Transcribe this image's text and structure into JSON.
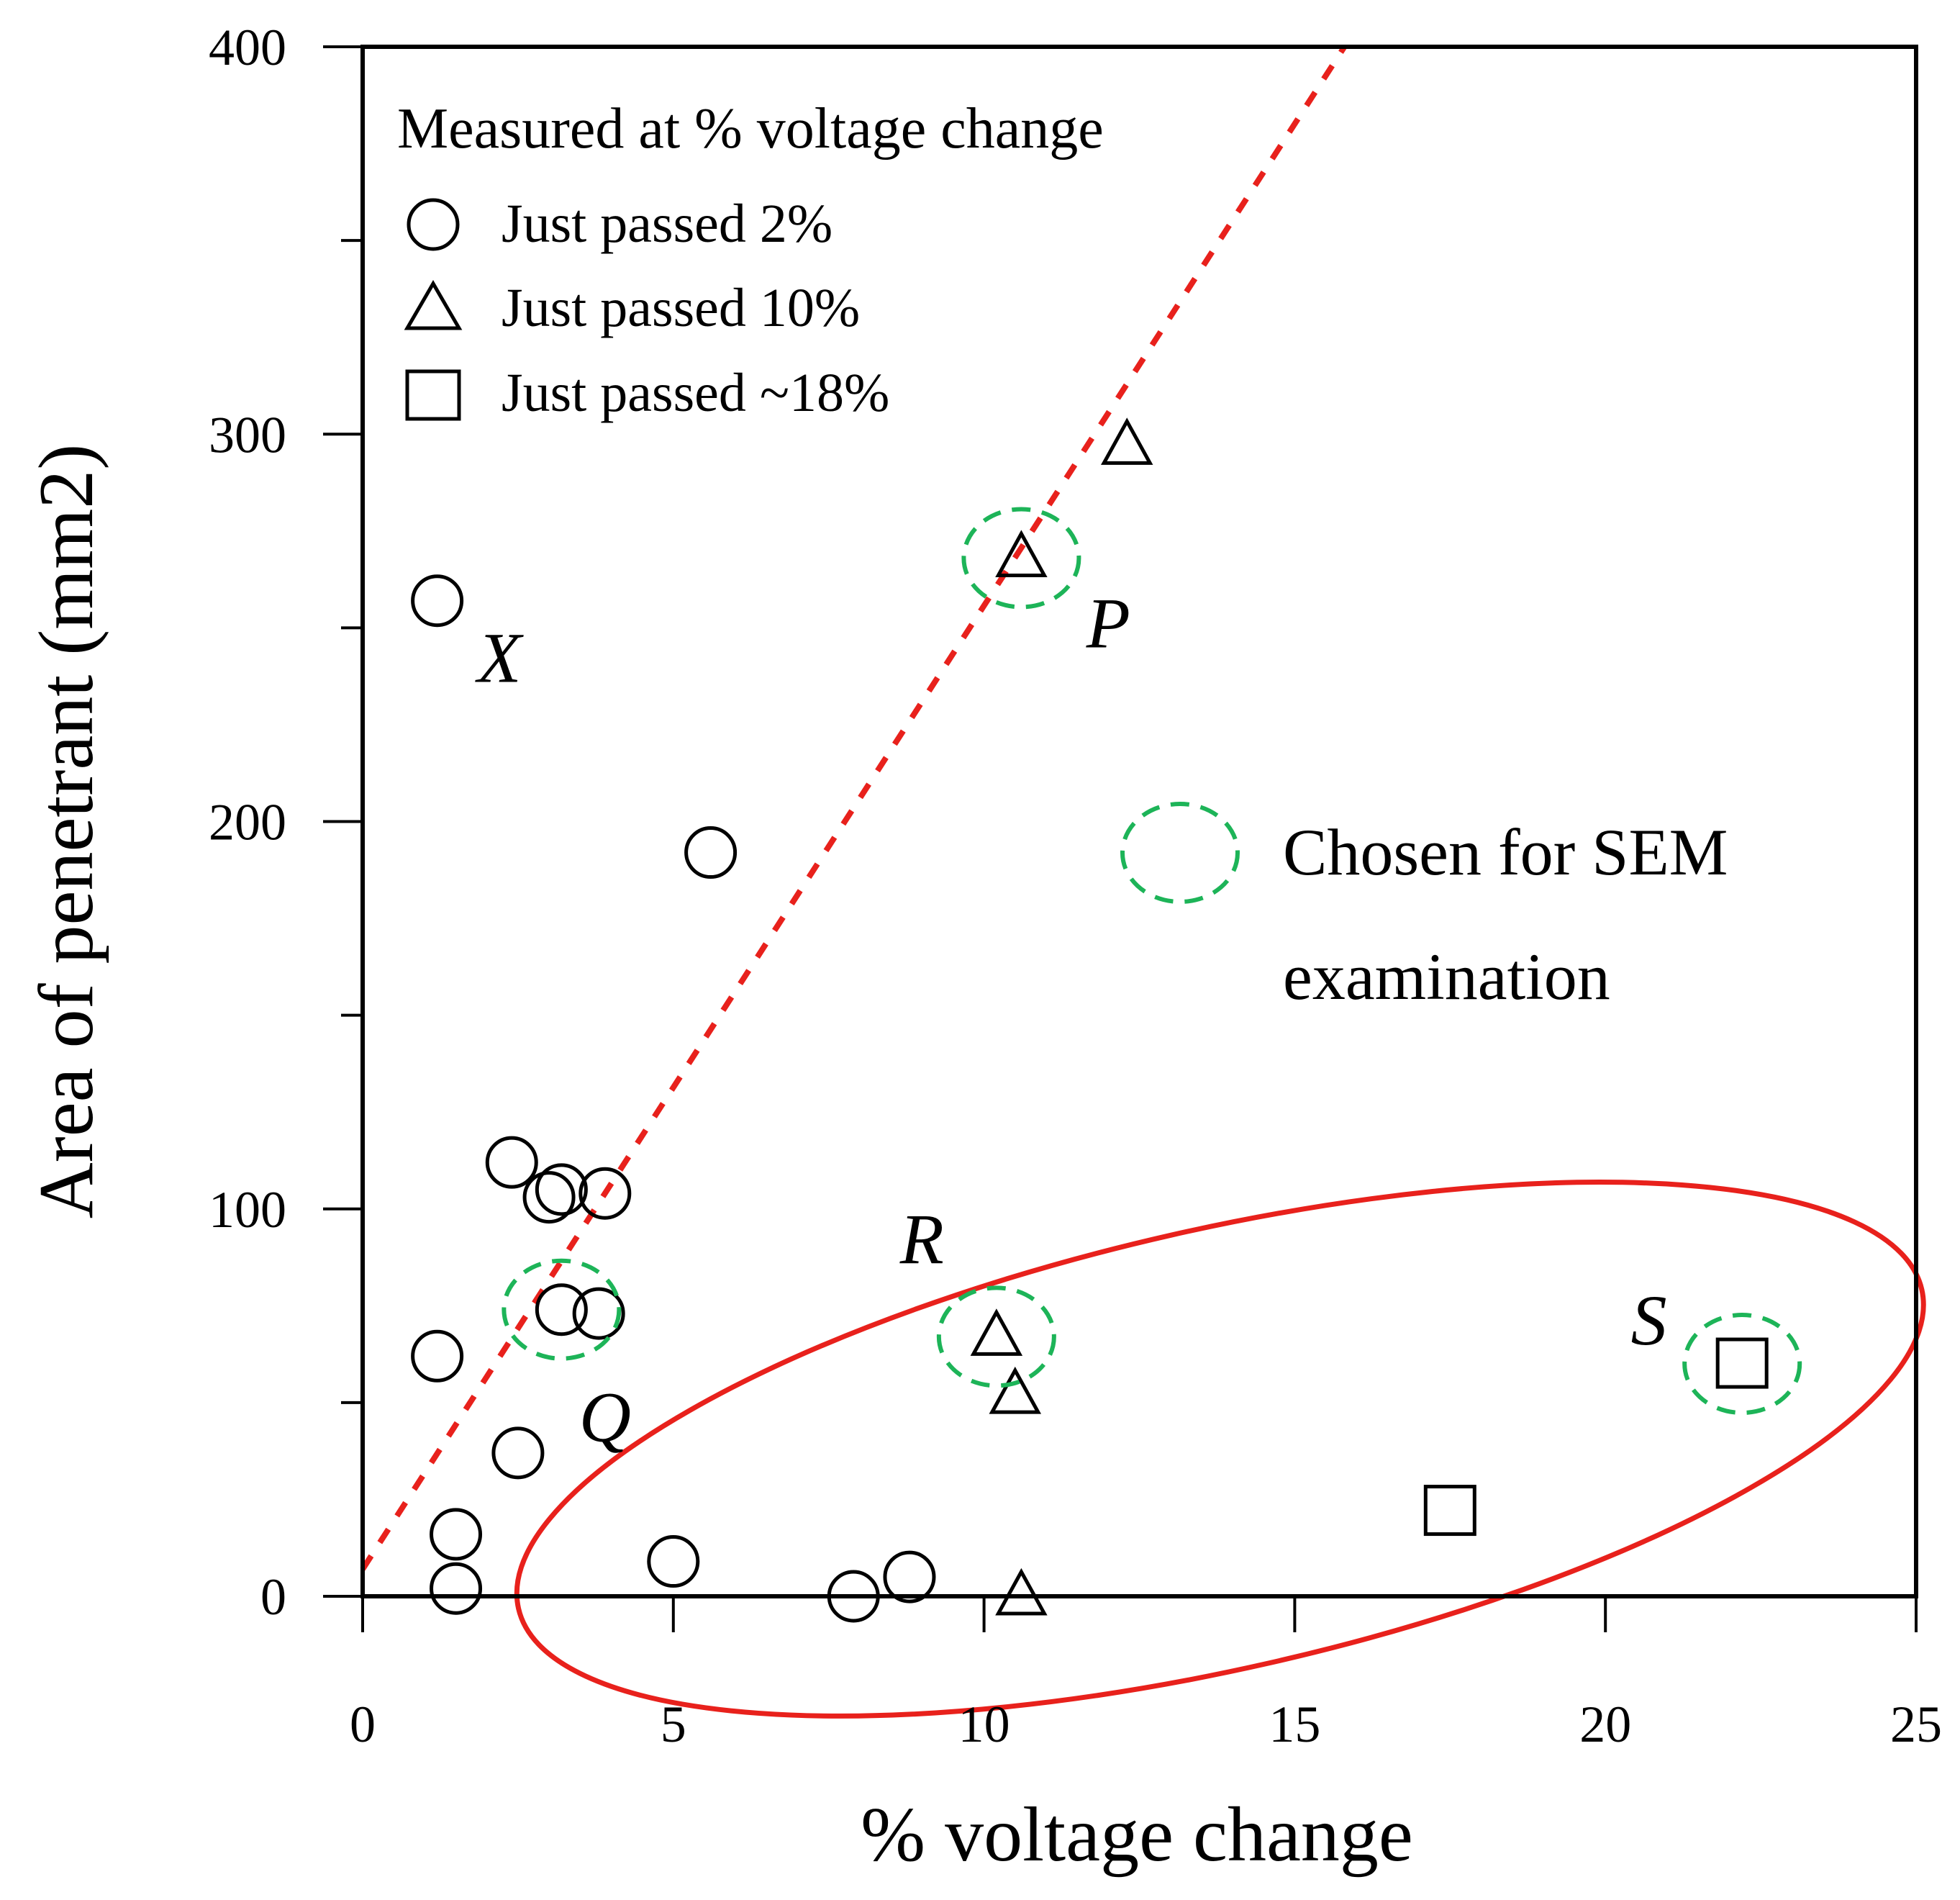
{
  "chart_data": {
    "type": "scatter",
    "xlabel": "% voltage change",
    "ylabel": "Area of penetrant (mm2)",
    "xlim": [
      0,
      25
    ],
    "ylim": [
      0,
      400
    ],
    "x_ticks": [
      0,
      5,
      10,
      15,
      20,
      25
    ],
    "y_ticks": [
      0,
      100,
      200,
      300,
      400
    ],
    "y_minor_ticks": [
      50,
      150,
      250,
      350
    ],
    "legend": {
      "title": "Measured at % voltage change",
      "position": "top-left",
      "entries": [
        {
          "marker": "circle",
          "label": "Just passed 2%"
        },
        {
          "marker": "triangle",
          "label": "Just passed 10%"
        },
        {
          "marker": "square",
          "label": "Just passed ~18%"
        }
      ]
    },
    "series": [
      {
        "name": "Just passed 2%",
        "marker": "circle",
        "points": [
          {
            "x": 1.2,
            "y": 257
          },
          {
            "x": 5.6,
            "y": 192
          },
          {
            "x": 2.4,
            "y": 112
          },
          {
            "x": 3.0,
            "y": 103
          },
          {
            "x": 3.2,
            "y": 105
          },
          {
            "x": 3.9,
            "y": 104
          },
          {
            "x": 3.2,
            "y": 74
          },
          {
            "x": 3.8,
            "y": 73
          },
          {
            "x": 1.2,
            "y": 62
          },
          {
            "x": 2.5,
            "y": 37
          },
          {
            "x": 1.5,
            "y": 16
          },
          {
            "x": 1.5,
            "y": 2
          },
          {
            "x": 5.0,
            "y": 9
          },
          {
            "x": 7.9,
            "y": 0
          },
          {
            "x": 8.8,
            "y": 5
          }
        ]
      },
      {
        "name": "Just passed 10%",
        "marker": "triangle",
        "points": [
          {
            "x": 12.3,
            "y": 297
          },
          {
            "x": 10.6,
            "y": 268
          },
          {
            "x": 10.2,
            "y": 67
          },
          {
            "x": 10.5,
            "y": 52
          },
          {
            "x": 10.6,
            "y": 0
          }
        ]
      },
      {
        "name": "Just passed ~18%",
        "marker": "square",
        "points": [
          {
            "x": 22.2,
            "y": 60
          },
          {
            "x": 17.5,
            "y": 22
          }
        ]
      }
    ],
    "trend_line": {
      "style": "dashed",
      "color": "#e8211c",
      "from": {
        "x": 0,
        "y": 7
      },
      "to": {
        "x": 15.8,
        "y": 400
      }
    },
    "highlighted_points": [
      {
        "label": "P",
        "x": 10.6,
        "y": 268
      },
      {
        "label": "Q",
        "x": 3.2,
        "y": 74
      },
      {
        "label": "R",
        "x": 10.2,
        "y": 67
      },
      {
        "label": "S",
        "x": 22.2,
        "y": 60
      }
    ],
    "point_labels": [
      {
        "text": "X",
        "x": 2.2,
        "y": 236
      },
      {
        "text": "P",
        "x": 12.0,
        "y": 245
      },
      {
        "text": "Q",
        "x": 3.9,
        "y": 40
      },
      {
        "text": "R",
        "x": 9.0,
        "y": 86
      },
      {
        "text": "S",
        "x": 20.7,
        "y": 65
      }
    ],
    "highlight_ellipse": {
      "color": "#e8211c",
      "center": {
        "x": 13.8,
        "y": 38
      },
      "label": ""
    },
    "annotation": {
      "line1": "Chosen for SEM",
      "line2": "examination",
      "marker": "dashed green circle",
      "marker_color": "#1db458"
    },
    "colors": {
      "axis": "#000000",
      "trend": "#e8211c",
      "ellipse": "#e8211c",
      "sem_marker": "#1db458"
    }
  }
}
